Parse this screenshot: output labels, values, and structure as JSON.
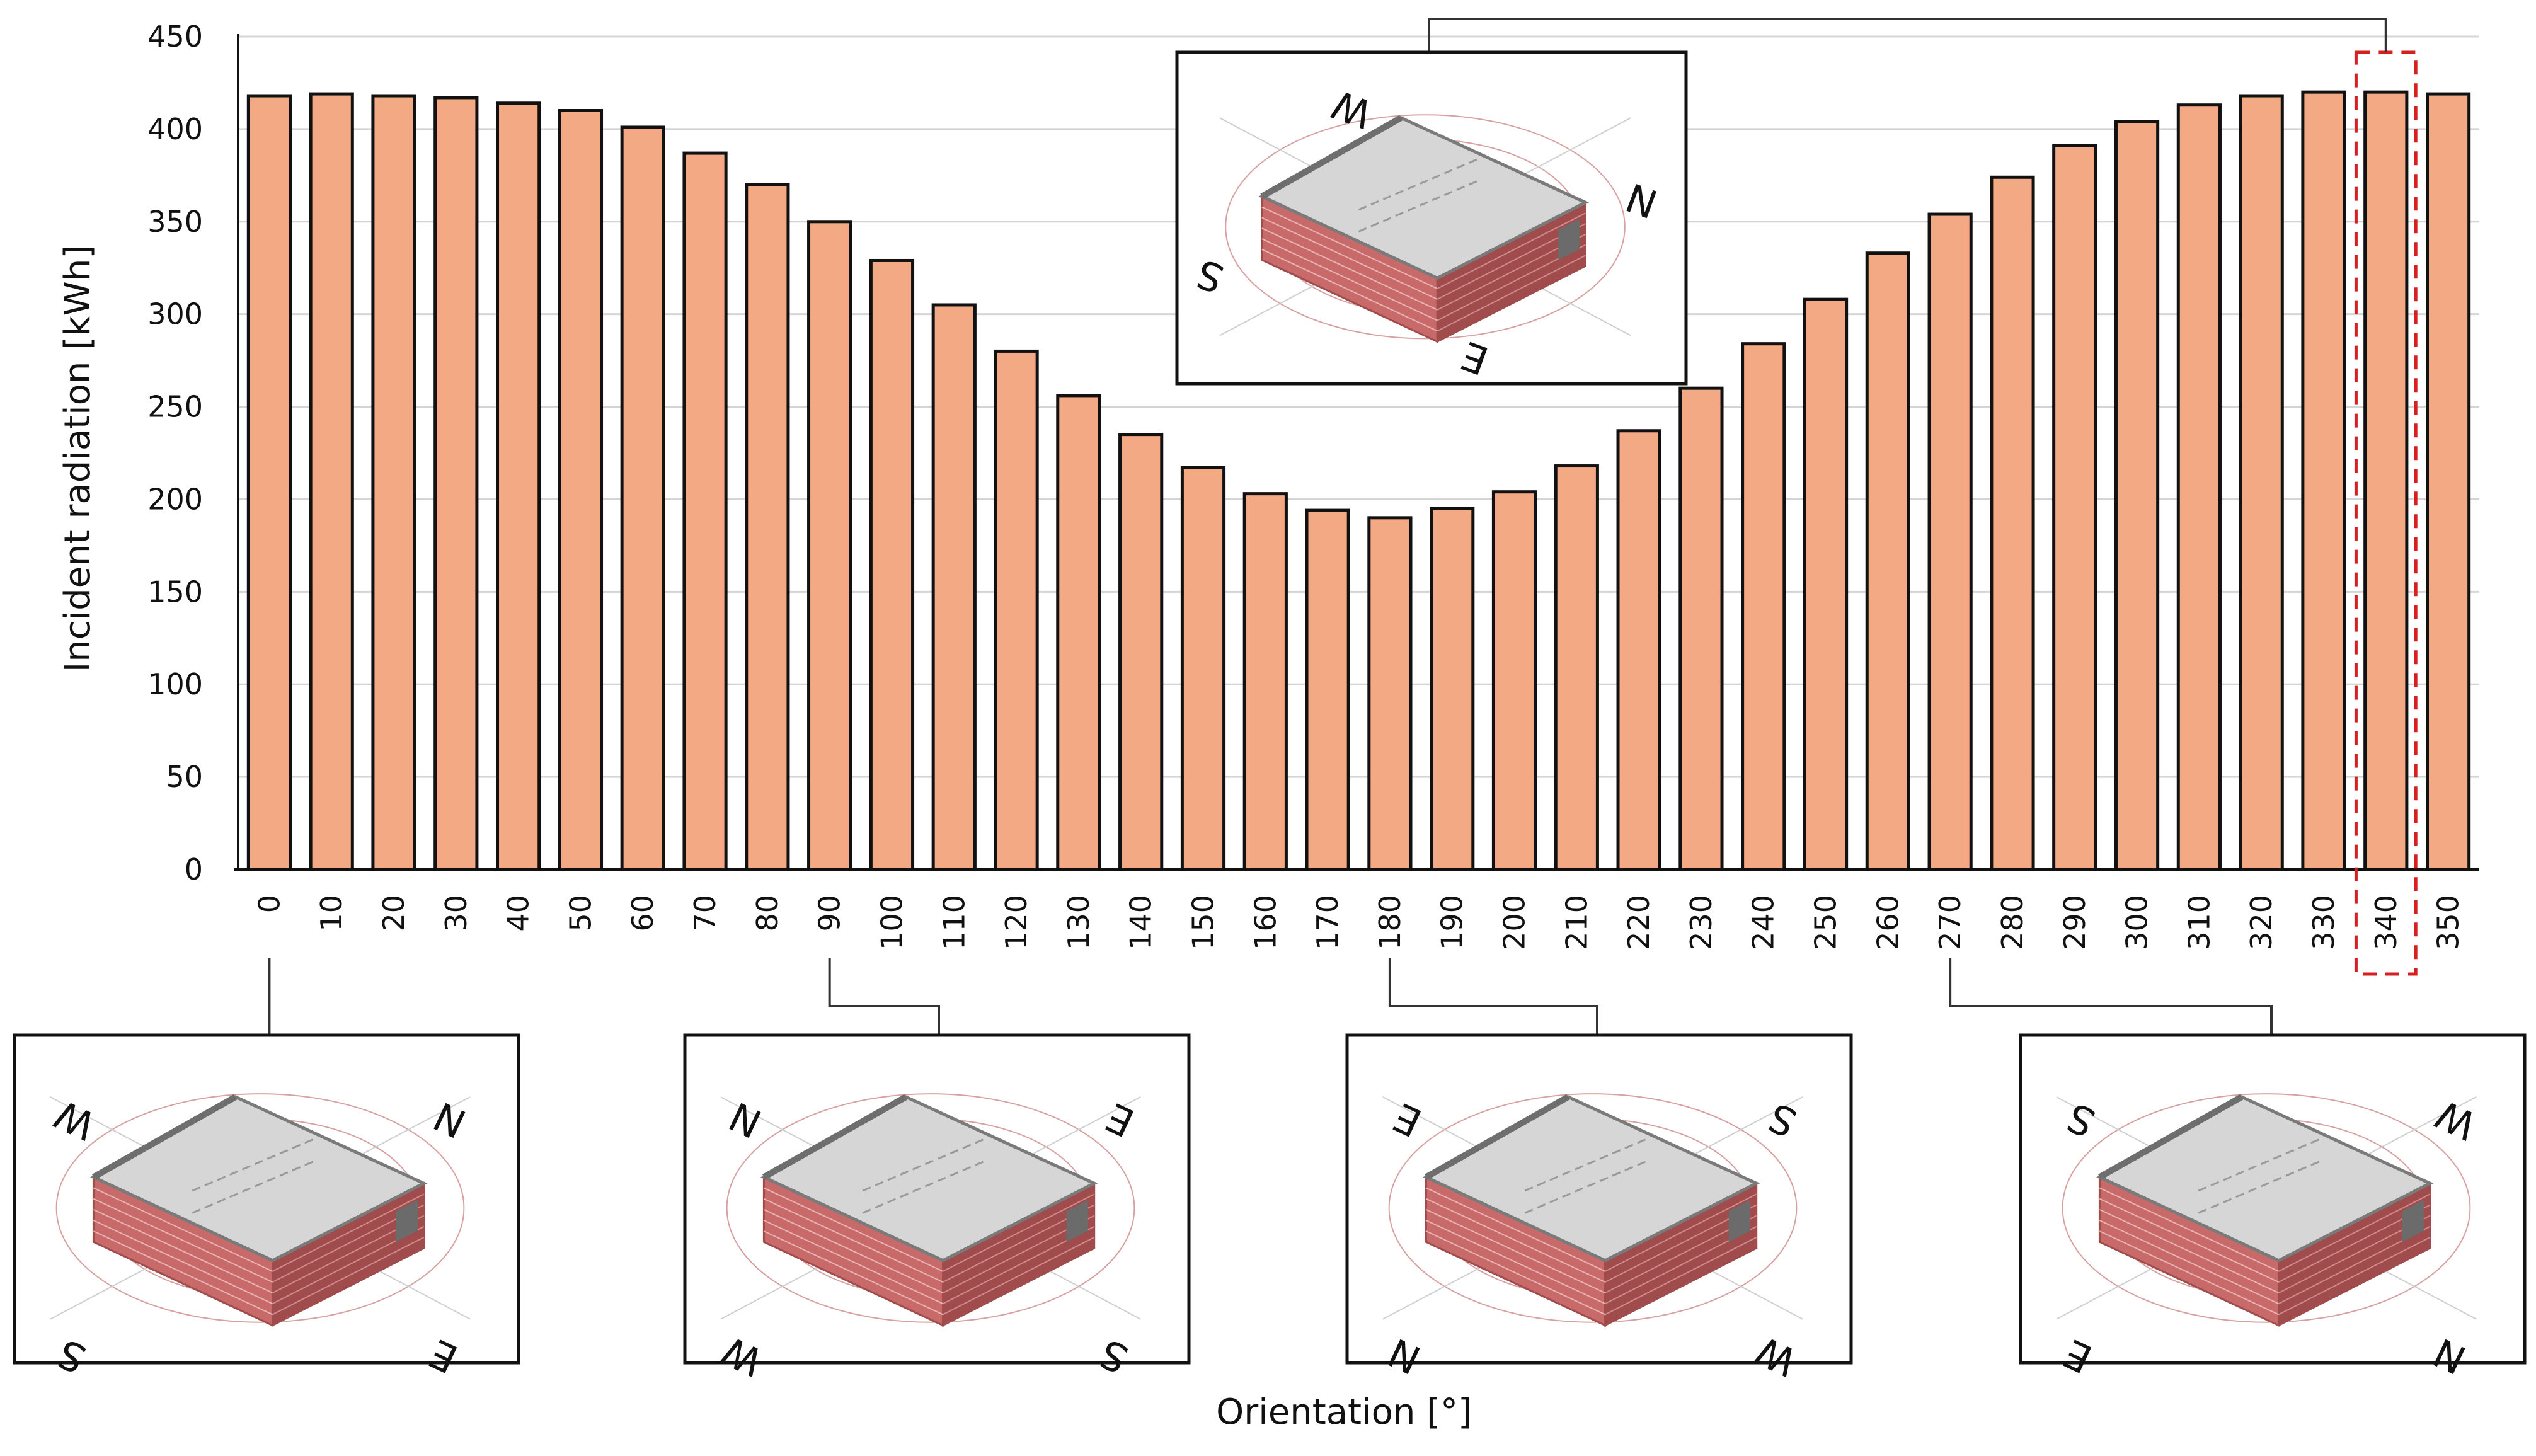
{
  "chart_data": {
    "type": "bar",
    "xlabel": "Orientation [°]",
    "ylabel": "Incident radiation [kWh]",
    "ylim": [
      0,
      450
    ],
    "yticks": [
      0,
      50,
      100,
      150,
      200,
      250,
      300,
      350,
      400,
      450
    ],
    "grid": "horizontal",
    "bar_color": "#f4a985",
    "bar_edge_color": "#111111",
    "highlight_color": "#d62020",
    "highlighted_category": "340",
    "categories": [
      "0",
      "10",
      "20",
      "30",
      "40",
      "50",
      "60",
      "70",
      "80",
      "90",
      "100",
      "110",
      "120",
      "130",
      "140",
      "150",
      "160",
      "170",
      "180",
      "190",
      "200",
      "210",
      "220",
      "230",
      "240",
      "250",
      "260",
      "270",
      "280",
      "290",
      "300",
      "310",
      "320",
      "330",
      "340",
      "350"
    ],
    "values": [
      418,
      419,
      418,
      417,
      414,
      410,
      401,
      387,
      370,
      350,
      329,
      305,
      280,
      256,
      235,
      217,
      203,
      194,
      190,
      195,
      204,
      218,
      237,
      260,
      284,
      308,
      333,
      354,
      374,
      391,
      404,
      413,
      418,
      420,
      420,
      419
    ]
  },
  "insets": [
    {
      "target": "340",
      "labels": {
        "top_left": "W",
        "right": "N",
        "left": "S",
        "bottom": "E"
      }
    },
    {
      "target": "0",
      "labels": {
        "top_left": "W",
        "top_right": "N",
        "bottom_left": "S",
        "bottom_right": "E"
      }
    },
    {
      "target": "90",
      "labels": {
        "top_left": "N",
        "top_right": "E",
        "bottom_left": "W",
        "bottom_right": "S"
      }
    },
    {
      "target": "180",
      "labels": {
        "top_left": "E",
        "top_right": "S",
        "bottom_left": "N",
        "bottom_right": "W"
      }
    },
    {
      "target": "270",
      "labels": {
        "top_left": "S",
        "top_right": "W",
        "bottom_left": "E",
        "bottom_right": "N"
      }
    }
  ],
  "colors": {
    "roof": "#d6d6d6",
    "roof_edge": "#7a7a7a",
    "brick": "#c86a6a",
    "brick_dark": "#a14c4c",
    "compass_ring": "#d7a1a1"
  }
}
